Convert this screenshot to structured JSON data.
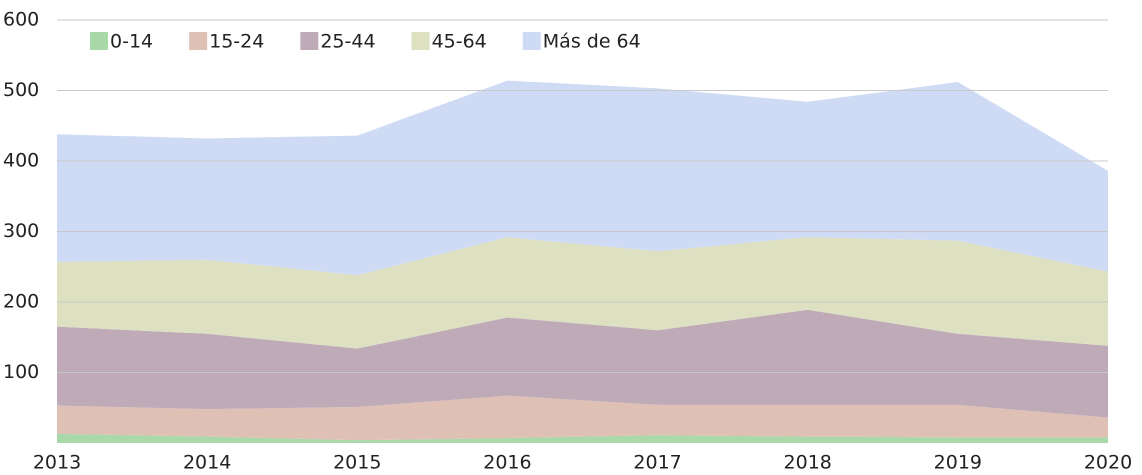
{
  "chart_data": {
    "type": "stacked-area",
    "categories": [
      "2013",
      "2014",
      "2015",
      "2016",
      "2017",
      "2018",
      "2019",
      "2020"
    ],
    "series": [
      {
        "name": "0-14",
        "color": "#a9d8a9",
        "values": [
          13,
          9,
          4,
          7,
          11,
          9,
          8,
          8
        ]
      },
      {
        "name": "15-24",
        "color": "#dfc0b5",
        "values": [
          40,
          39,
          47,
          60,
          43,
          45,
          46,
          28
        ]
      },
      {
        "name": "25-44",
        "color": "#bfabb8",
        "values": [
          112,
          107,
          83,
          111,
          106,
          135,
          101,
          102
        ]
      },
      {
        "name": "45-64",
        "color": "#dde0c1",
        "values": [
          92,
          105,
          104,
          114,
          112,
          103,
          132,
          105
        ]
      },
      {
        "name": "Más de 64",
        "color": "#cfdbf4",
        "values": [
          181,
          172,
          198,
          222,
          231,
          192,
          225,
          143
        ]
      }
    ],
    "ylim": [
      0,
      600
    ],
    "yticks": [
      100,
      200,
      300,
      400,
      500,
      600
    ],
    "grid": true,
    "legend": "top-left"
  }
}
